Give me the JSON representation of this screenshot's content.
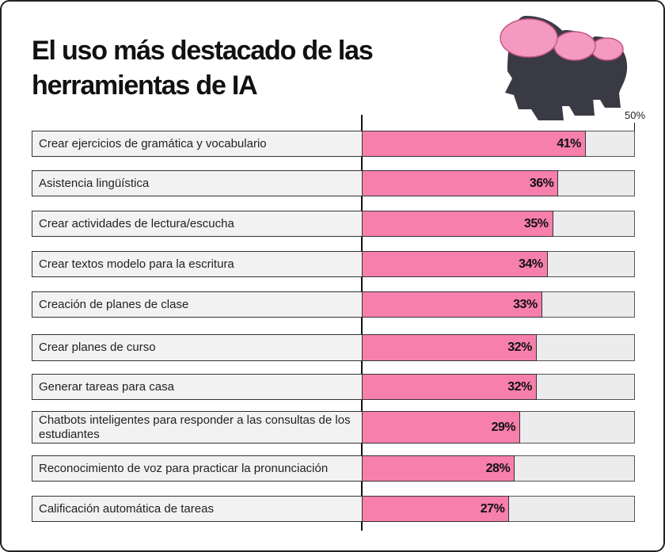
{
  "chart_data": {
    "type": "hbar",
    "title": "El uso más destacado de las herramientas de IA",
    "categories": [
      "Crear ejercicios de gramática y vocabulario",
      "Asistencia lingüística",
      "Crear actividades de lectura/escucha",
      "Crear textos modelo para la escritura",
      "Creación de planes de clase",
      "Crear planes de curso",
      "Generar tareas para casa",
      "Chatbots inteligentes para responder a las consultas de los estudiantes",
      "Reconocimiento de voz para practicar la pronunciación",
      "Calificación automática de tareas"
    ],
    "values": [
      41,
      36,
      35,
      34,
      33,
      32,
      32,
      29,
      28,
      27
    ],
    "value_labels": [
      "41%",
      "36%",
      "35%",
      "34%",
      "33%",
      "32%",
      "32%",
      "29%",
      "28%",
      "27%"
    ],
    "color": "#f77fac",
    "xlim": [
      0,
      50
    ],
    "xticks": [
      {
        "value": 50,
        "label": "50%"
      }
    ]
  }
}
